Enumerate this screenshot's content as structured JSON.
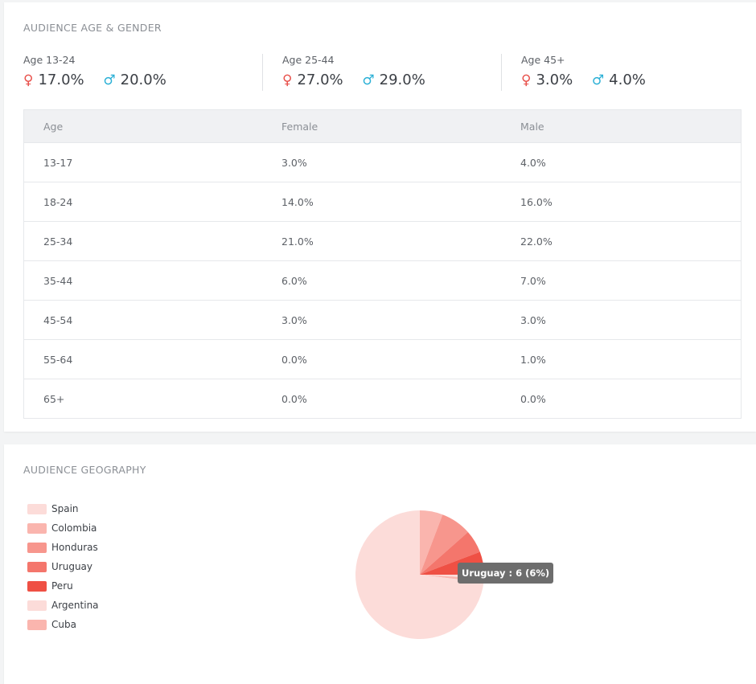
{
  "age_gender": {
    "title": "AUDIENCE AGE & GENDER",
    "groups": [
      {
        "label": "Age 13-24",
        "female": "17.0%",
        "male": "20.0%"
      },
      {
        "label": "Age 25-44",
        "female": "27.0%",
        "male": "29.0%"
      },
      {
        "label": "Age 45+",
        "female": "3.0%",
        "male": "4.0%"
      }
    ],
    "female_symbol": "♀",
    "male_symbol": "♂",
    "table": {
      "headers": [
        "Age",
        "Female",
        "Male"
      ],
      "rows": [
        [
          "13-17",
          "3.0%",
          "4.0%"
        ],
        [
          "18-24",
          "14.0%",
          "16.0%"
        ],
        [
          "25-34",
          "21.0%",
          "22.0%"
        ],
        [
          "35-44",
          "6.0%",
          "7.0%"
        ],
        [
          "45-54",
          "3.0%",
          "3.0%"
        ],
        [
          "55-64",
          "0.0%",
          "1.0%"
        ],
        [
          "65+",
          "0.0%",
          "0.0%"
        ]
      ]
    },
    "colors": {
      "female": "#e8504a",
      "male": "#2bb0d6"
    }
  },
  "geography": {
    "title": "AUDIENCE GEOGRAPHY",
    "tooltip": "Uruguay : 6 (6%)",
    "chart_data": {
      "type": "pie",
      "categories": [
        "Spain",
        "Colombia",
        "Honduras",
        "Uruguay",
        "Peru",
        "Argentina",
        "Cuba"
      ],
      "values": [
        76,
        6,
        8,
        6,
        6,
        1,
        1
      ],
      "colors": [
        "#fcdcd9",
        "#fab5ae",
        "#f7968d",
        "#f4766c",
        "#ef5044",
        "#fcdcd9",
        "#fab5ae"
      ]
    }
  }
}
